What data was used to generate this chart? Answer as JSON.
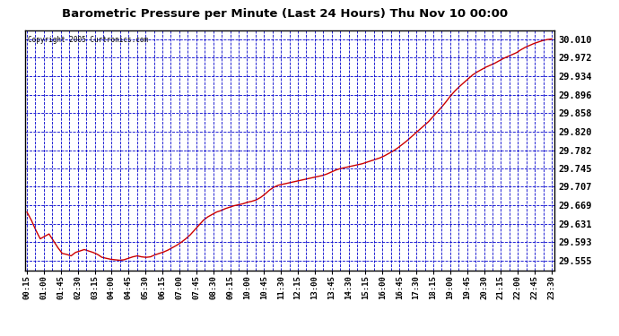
{
  "title": "Barometric Pressure per Minute (Last 24 Hours) Thu Nov 10 00:00",
  "copyright": "Copyright 2005 Curtronics.com",
  "background_color": "#ffffff",
  "plot_bg_color": "#ffffff",
  "line_color": "#cc0000",
  "grid_color": "#0000cc",
  "title_color": "#000000",
  "x_labels": [
    "00:15",
    "01:00",
    "01:45",
    "02:30",
    "03:15",
    "04:00",
    "04:45",
    "05:30",
    "06:15",
    "07:00",
    "07:45",
    "08:30",
    "09:15",
    "10:00",
    "10:45",
    "11:30",
    "12:15",
    "13:00",
    "13:45",
    "14:30",
    "15:15",
    "16:00",
    "16:45",
    "17:30",
    "18:15",
    "19:00",
    "19:45",
    "20:30",
    "21:15",
    "22:00",
    "22:45",
    "23:30"
  ],
  "y_ticks": [
    29.555,
    29.593,
    29.631,
    29.669,
    29.707,
    29.745,
    29.782,
    29.82,
    29.858,
    29.896,
    29.934,
    29.972,
    30.01
  ],
  "ylim": [
    29.535,
    30.028
  ],
  "pressure_data": [
    29.655,
    29.638,
    29.618,
    29.6,
    29.605,
    29.61,
    29.596,
    29.582,
    29.57,
    29.568,
    29.565,
    29.572,
    29.575,
    29.578,
    29.575,
    29.572,
    29.568,
    29.562,
    29.56,
    29.558,
    29.557,
    29.556,
    29.557,
    29.56,
    29.563,
    29.565,
    29.563,
    29.562,
    29.563,
    29.567,
    29.57,
    29.573,
    29.577,
    29.582,
    29.587,
    29.593,
    29.6,
    29.608,
    29.618,
    29.628,
    29.638,
    29.645,
    29.65,
    29.655,
    29.658,
    29.662,
    29.665,
    29.668,
    29.67,
    29.672,
    29.675,
    29.677,
    29.68,
    29.685,
    29.692,
    29.7,
    29.706,
    29.71,
    29.712,
    29.714,
    29.716,
    29.718,
    29.72,
    29.722,
    29.724,
    29.726,
    29.728,
    29.73,
    29.733,
    29.737,
    29.741,
    29.744,
    29.746,
    29.748,
    29.75,
    29.752,
    29.754,
    29.757,
    29.76,
    29.763,
    29.766,
    29.77,
    29.775,
    29.78,
    29.786,
    29.793,
    29.8,
    29.808,
    29.816,
    29.824,
    29.832,
    29.84,
    29.85,
    29.86,
    29.87,
    29.881,
    29.893,
    29.903,
    29.912,
    29.92,
    29.928,
    29.936,
    29.942,
    29.947,
    29.952,
    29.956,
    29.96,
    29.965,
    29.97,
    29.974,
    29.978,
    29.982,
    29.988,
    29.993,
    29.997,
    30.001,
    30.004,
    30.007,
    30.009,
    30.01
  ],
  "n_points": 120
}
